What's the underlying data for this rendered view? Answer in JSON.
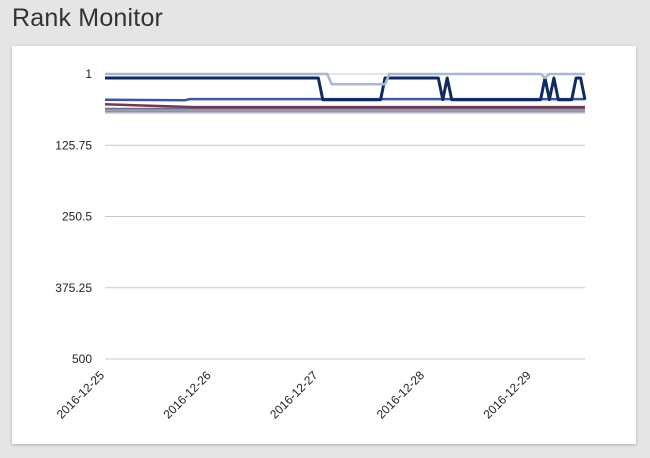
{
  "header": {
    "title": "Rank Monitor"
  },
  "chart_data": {
    "type": "line",
    "title": "",
    "xlabel": "",
    "ylabel": "",
    "y_reversed": true,
    "ylim": [
      1,
      500
    ],
    "yticks": [
      "1",
      "125.75",
      "250.5",
      "375.25",
      "500"
    ],
    "x_range": [
      "2016-12-25",
      "2016-12-29 12:00"
    ],
    "xticks": [
      "2016-12-25",
      "2016-12-26",
      "2016-12-27",
      "2016-12-28",
      "2016-12-29"
    ],
    "grid": true,
    "legend": "none",
    "series": [
      {
        "color": "#a9b6d4",
        "width": 2.5,
        "points": [
          [
            "2016-12-25",
            1
          ],
          [
            "2016-12-27 02:00",
            1
          ],
          [
            "2016-12-27 03:00",
            19
          ],
          [
            "2016-12-27 15:00",
            19
          ],
          [
            "2016-12-27 16:00",
            1
          ],
          [
            "2016-12-29 02:00",
            1
          ],
          [
            "2016-12-29 03:00",
            8
          ],
          [
            "2016-12-29 04:00",
            1
          ],
          [
            "2016-12-29 12:00",
            1
          ]
        ]
      },
      {
        "color": "#0d2a63",
        "width": 3,
        "points": [
          [
            "2016-12-25",
            8
          ],
          [
            "2016-12-27 00:00",
            8
          ],
          [
            "2016-12-27 01:00",
            46
          ],
          [
            "2016-12-27 14:00",
            46
          ],
          [
            "2016-12-27 15:00",
            8
          ],
          [
            "2016-12-28 03:00",
            8
          ],
          [
            "2016-12-28 04:00",
            46
          ],
          [
            "2016-12-28 05:00",
            8
          ],
          [
            "2016-12-28 06:00",
            46
          ],
          [
            "2016-12-29 02:00",
            46
          ],
          [
            "2016-12-29 03:00",
            8
          ],
          [
            "2016-12-29 04:00",
            46
          ],
          [
            "2016-12-29 05:00",
            8
          ],
          [
            "2016-12-29 06:00",
            46
          ],
          [
            "2016-12-29 09:00",
            46
          ],
          [
            "2016-12-29 10:00",
            8
          ],
          [
            "2016-12-29 11:00",
            8
          ],
          [
            "2016-12-29 12:00",
            46
          ]
        ]
      },
      {
        "color": "#3d55a6",
        "width": 2.5,
        "points": [
          [
            "2016-12-25",
            46
          ],
          [
            "2016-12-25 18:00",
            47
          ],
          [
            "2016-12-25 19:00",
            45
          ],
          [
            "2016-12-29 12:00",
            45
          ]
        ]
      },
      {
        "color": "#7a3550",
        "width": 2.5,
        "points": [
          [
            "2016-12-25",
            54
          ],
          [
            "2016-12-25 20:00",
            59
          ],
          [
            "2016-12-29 12:00",
            59
          ]
        ]
      },
      {
        "color": "#6a6f8a",
        "width": 2,
        "points": [
          [
            "2016-12-25",
            62
          ],
          [
            "2016-12-29 12:00",
            62
          ]
        ]
      },
      {
        "color": "#8f92a6",
        "width": 2,
        "points": [
          [
            "2016-12-25",
            66
          ],
          [
            "2016-12-29 12:00",
            66
          ]
        ]
      },
      {
        "color": "#b5bad0",
        "width": 1.5,
        "points": [
          [
            "2016-12-25",
            69
          ],
          [
            "2016-12-29 12:00",
            69
          ]
        ]
      }
    ]
  }
}
